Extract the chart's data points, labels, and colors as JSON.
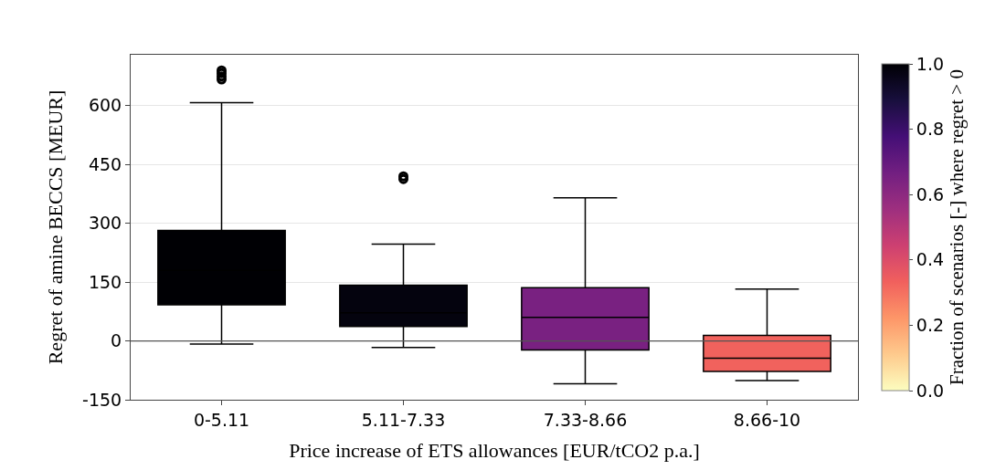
{
  "chart_data": {
    "type": "box",
    "xlabel": "Price increase of ETS allowances [EUR/tCO2 p.a.]",
    "ylabel": "Regret of amine BECCS [MEUR]",
    "clabel": "Fraction of scenarios [-] where regret > 0",
    "categories": [
      "0-5.11",
      "5.11-7.33",
      "7.33-8.66",
      "8.66-10"
    ],
    "boxes": [
      {
        "low": -8,
        "q1": 92,
        "median": 180,
        "q3": 282,
        "high": 608,
        "outliers": [
          667,
          675,
          683,
          690
        ]
      },
      {
        "low": -17,
        "q1": 37,
        "median": 72,
        "q3": 142,
        "high": 247,
        "outliers": [
          413,
          420
        ]
      },
      {
        "low": -109,
        "q1": -23,
        "median": 60,
        "q3": 136,
        "high": 365
      },
      {
        "low": -101,
        "q1": -78,
        "median": -44,
        "q3": 14,
        "high": 132
      }
    ],
    "cvalues": [
      1.0,
      0.98,
      0.65,
      0.33
    ],
    "clim": [
      0,
      1
    ],
    "cticks": [
      {
        "value": 0,
        "label": "0.0"
      },
      0.2,
      0.4,
      0.6,
      0.8,
      {
        "value": 1,
        "label": "1.0"
      }
    ],
    "ylim": [
      -150,
      730
    ],
    "yticks": [
      -150,
      0,
      150,
      300,
      450,
      600
    ],
    "grid": "y",
    "ref_lines": [
      {
        "axis": "y",
        "value": 0,
        "color": "#555555"
      }
    ]
  }
}
